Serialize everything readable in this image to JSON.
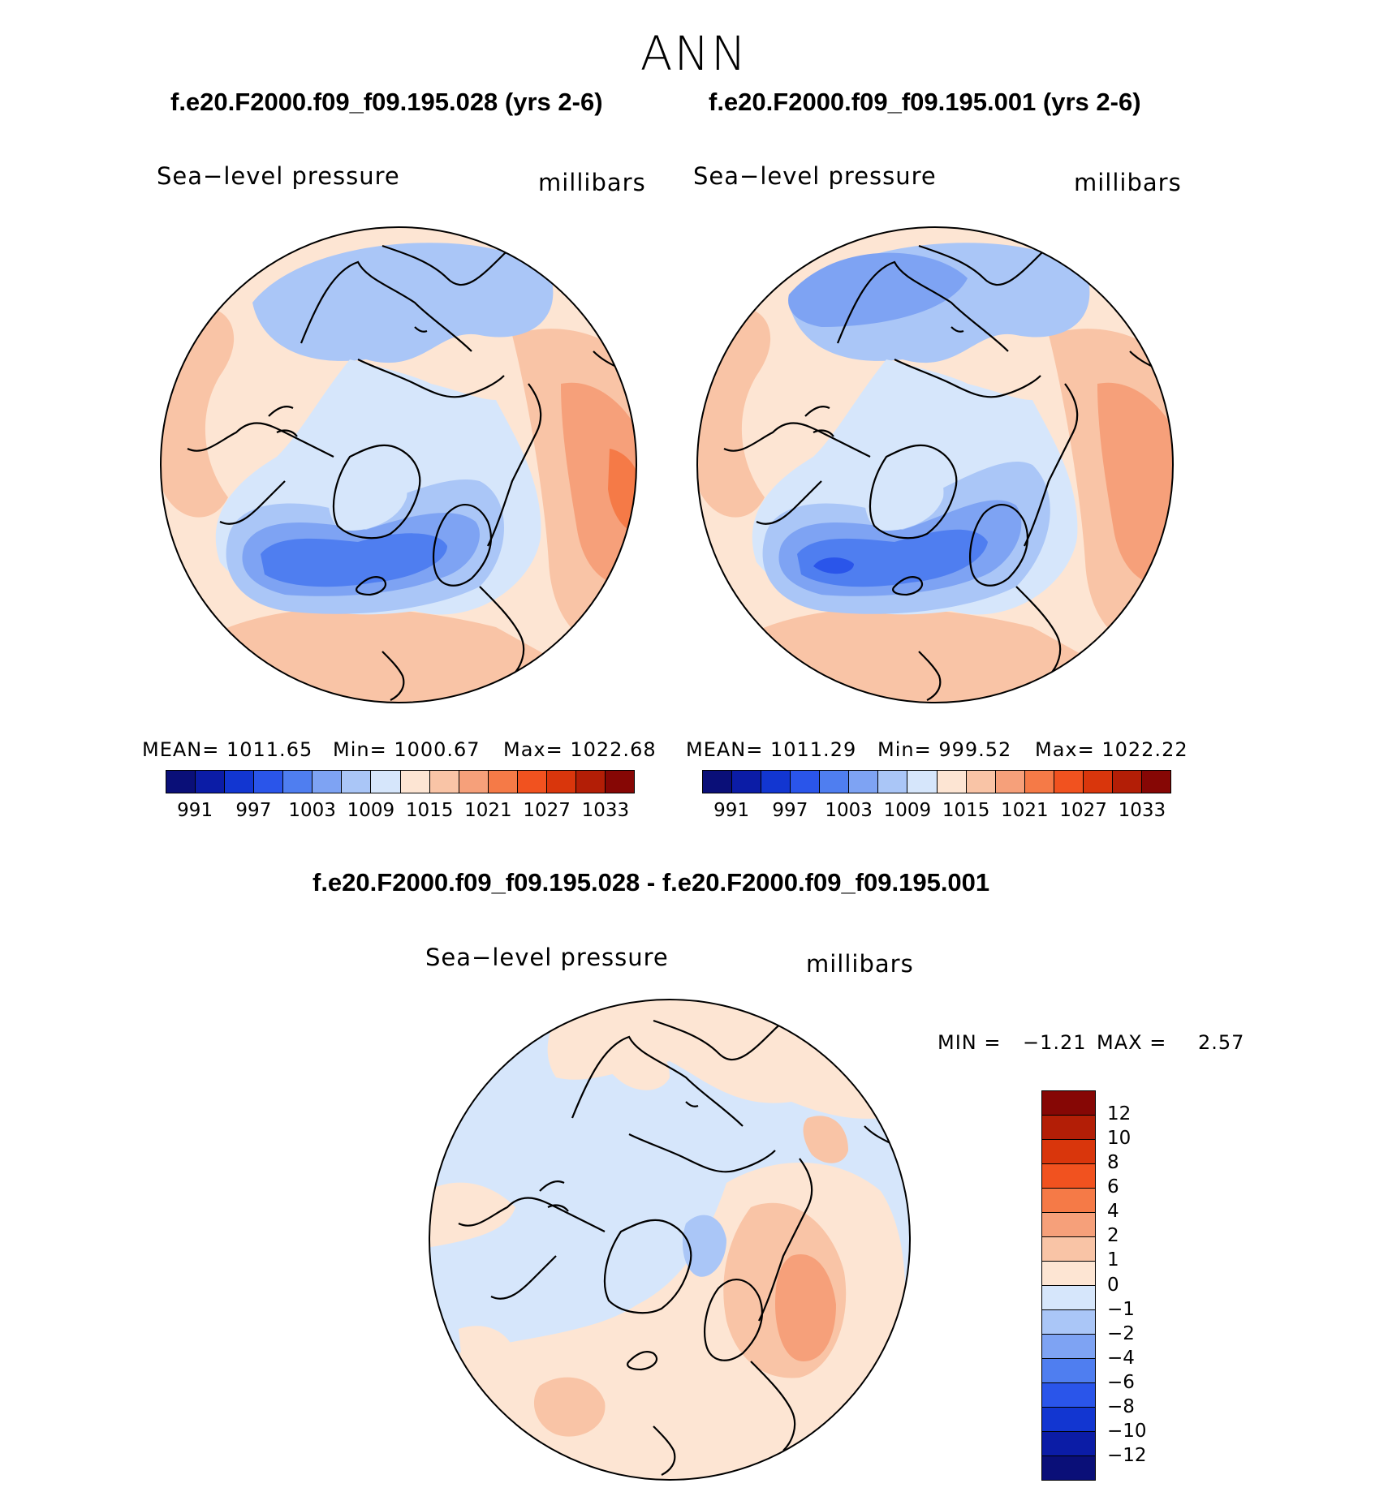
{
  "title": "ANN",
  "colors": {
    "slp": [
      "#0a0f78",
      "#0b1ca6",
      "#1236d1",
      "#2a55ea",
      "#4f7ef0",
      "#7ea3f3",
      "#aac6f7",
      "#d6e6fb",
      "#fde5d3",
      "#f9c4a6",
      "#f6a07a",
      "#f57a47",
      "#f1521f",
      "#d9360c",
      "#b31e06",
      "#860705"
    ],
    "diff": [
      "#860705",
      "#b31e06",
      "#d9360c",
      "#f1521f",
      "#f57a47",
      "#f6a07a",
      "#f9c4a6",
      "#fde5d3",
      "#d6e6fb",
      "#aac6f7",
      "#7ea3f3",
      "#4f7ef0",
      "#2a55ea",
      "#1236d1",
      "#0b1ca6",
      "#0a0f78"
    ]
  },
  "panel1": {
    "title": "f.e20.F2000.f09_f09.195.028 (yrs 2-6)",
    "left_label": "Sea−level pressure",
    "right_label": "millibars",
    "mean_text": "MEAN=  1011.65",
    "min_text": "Min=  1000.67",
    "max_text": "Max=  1022.68",
    "ticks": [
      "991",
      "997",
      "1003",
      "1009",
      "1015",
      "1021",
      "1027",
      "1033"
    ]
  },
  "panel2": {
    "title": "f.e20.F2000.f09_f09.195.001 (yrs 2-6)",
    "left_label": "Sea−level pressure",
    "right_label": "millibars",
    "mean_text": "MEAN=  1011.29",
    "min_text": "Min=  999.52",
    "max_text": "Max=  1022.22",
    "ticks": [
      "991",
      "997",
      "1003",
      "1009",
      "1015",
      "1021",
      "1027",
      "1033"
    ]
  },
  "diff_panel": {
    "title": "f.e20.F2000.f09_f09.195.028 - f.e20.F2000.f09_f09.195.001",
    "left_label": "Sea−level pressure",
    "right_label": "millibars",
    "min_label": "MIN =",
    "min_value": "−1.21",
    "max_label": "MAX =",
    "max_value": "2.57",
    "ticks": [
      "12",
      "10",
      "8",
      "6",
      "4",
      "2",
      "1",
      "0",
      "−1",
      "−2",
      "−4",
      "−6",
      "−8",
      "−10",
      "−12"
    ]
  }
}
